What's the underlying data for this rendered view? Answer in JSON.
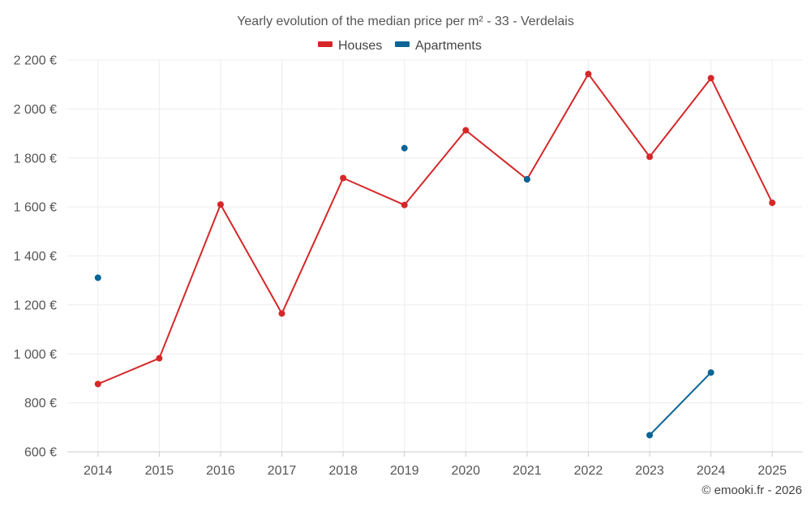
{
  "chart_data": {
    "type": "line",
    "title": "Yearly evolution of the median price per m² - 33 - Verdelais",
    "categories": [
      "2014",
      "2015",
      "2016",
      "2017",
      "2018",
      "2019",
      "2020",
      "2021",
      "2022",
      "2023",
      "2024",
      "2025"
    ],
    "ylim": [
      600,
      2200
    ],
    "yticks": [
      600,
      800,
      1000,
      1200,
      1400,
      1600,
      1800,
      2000,
      2200
    ],
    "ytick_labels": [
      "600 €",
      "800 €",
      "1 000 €",
      "1 200 €",
      "1 400 €",
      "1 600 €",
      "1 800 €",
      "2 000 €",
      "2 200 €"
    ],
    "grid": true,
    "legend_position": "top-center",
    "series": [
      {
        "name": "Houses",
        "color": "#d62728",
        "values": [
          877,
          982,
          1610,
          1165,
          1718,
          1608,
          1913,
          1713,
          2143,
          1805,
          2126,
          1617
        ]
      },
      {
        "name": "Apartments",
        "color": "#0a6496",
        "values": [
          1311,
          null,
          null,
          null,
          null,
          1840,
          null,
          1713,
          null,
          668,
          924,
          null
        ]
      }
    ]
  },
  "credit": "© emooki.fr - 2026"
}
